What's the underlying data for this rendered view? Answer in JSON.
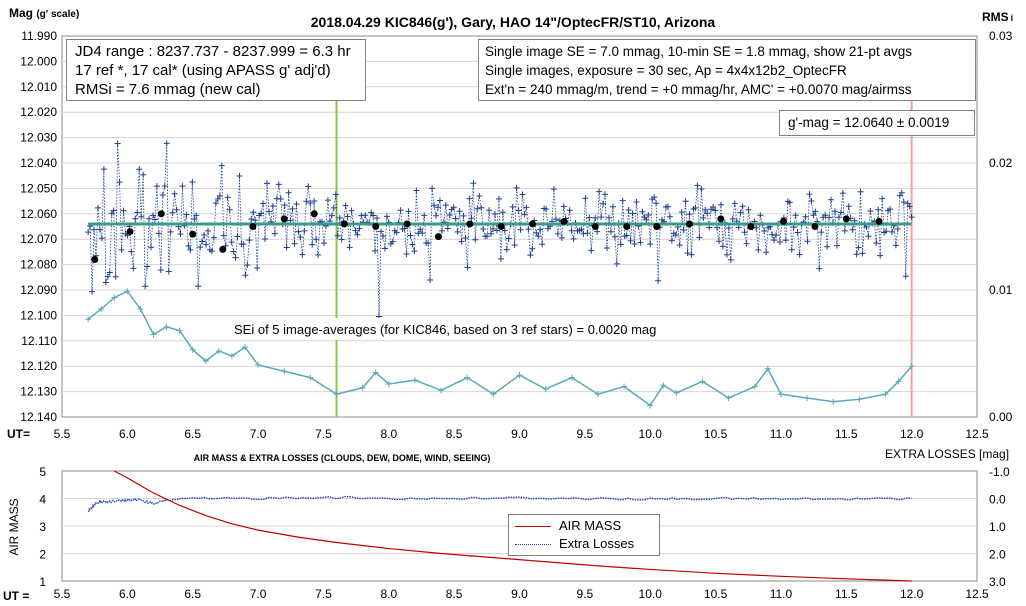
{
  "chart_data": [
    {
      "type": "scatter",
      "title": "2018.04.29  KIC846(g'),  Gary, HAO 14\"/OptecFR/ST10,  Arizona",
      "ylabel": "Mag",
      "ylabel_unit": "(g' scale)",
      "xlabel": "UT=",
      "y2label": "RMS",
      "y2label_suffix": "i",
      "xlim": [
        5.5,
        12.5
      ],
      "ylim": [
        11.99,
        12.14
      ],
      "y_inverted": true,
      "y2lim": [
        0.0,
        0.03
      ],
      "x_ticks": [
        "5.5",
        "6.0",
        "6.5",
        "7.0",
        "7.5",
        "8.0",
        "8.5",
        "9.0",
        "9.5",
        "10.0",
        "10.5",
        "11.0",
        "11.5",
        "12.0",
        "12.5"
      ],
      "y_ticks": [
        "11.990",
        "12.000",
        "12.010",
        "12.020",
        "12.030",
        "12.040",
        "12.050",
        "12.060",
        "12.070",
        "12.080",
        "12.090",
        "12.100",
        "12.110",
        "12.120",
        "12.130",
        "12.140"
      ],
      "y2_ticks": [
        "0.03",
        "0.02",
        "0.01",
        "0.00"
      ],
      "grid": true,
      "mean_mag": 12.064,
      "vertical_lines": [
        {
          "x": 7.6,
          "color": "#8cc63f"
        },
        {
          "x": 12.0,
          "color": "#f0a0a0"
        }
      ],
      "series": [
        {
          "color": "#1f3f8f",
          "marker": "+",
          "x_start": 5.7,
          "x_end": 12.0
        },
        {
          "color": "#000000",
          "marker": "dot",
          "x": [
            5.75,
            6.02,
            6.26,
            6.5,
            6.73,
            6.96,
            7.2,
            7.43,
            7.66,
            7.9,
            8.14,
            8.38,
            8.62,
            8.86,
            9.1,
            9.34,
            9.58,
            9.82,
            10.05,
            10.3,
            10.54,
            10.77,
            11.02,
            11.26,
            11.5,
            11.75
          ],
          "y": [
            12.078,
            12.067,
            12.06,
            12.068,
            12.074,
            12.065,
            12.062,
            12.06,
            12.064,
            12.065,
            12.064,
            12.069,
            12.064,
            12.065,
            12.064,
            12.063,
            12.065,
            12.065,
            12.065,
            12.064,
            12.062,
            12.065,
            12.063,
            12.065,
            12.062,
            12.063
          ]
        },
        {
          "color": "#5aaab8",
          "marker": "+",
          "axis": "y2",
          "x": [
            5.7,
            5.8,
            5.9,
            6.0,
            6.1,
            6.2,
            6.3,
            6.4,
            6.5,
            6.6,
            6.7,
            6.8,
            6.9,
            7.0,
            7.2,
            7.4,
            7.6,
            7.8,
            7.9,
            8.0,
            8.2,
            8.4,
            8.6,
            8.8,
            9.0,
            9.2,
            9.4,
            9.6,
            9.8,
            10.0,
            10.1,
            10.2,
            10.4,
            10.6,
            10.8,
            10.9,
            11.0,
            11.2,
            11.4,
            11.6,
            11.8,
            11.9,
            12.0
          ],
          "y": [
            0.0077,
            0.0085,
            0.0094,
            0.0099,
            0.0085,
            0.0065,
            0.0071,
            0.0068,
            0.0053,
            0.0044,
            0.0052,
            0.0048,
            0.0055,
            0.0041,
            0.0036,
            0.0031,
            0.0018,
            0.0023,
            0.0035,
            0.0026,
            0.0029,
            0.0021,
            0.0031,
            0.0018,
            0.0033,
            0.0022,
            0.0031,
            0.0018,
            0.0024,
            0.0009,
            0.0025,
            0.0019,
            0.0028,
            0.0015,
            0.0024,
            0.0038,
            0.0018,
            0.0015,
            0.0012,
            0.0014,
            0.0018,
            0.0028,
            0.004
          ]
        }
      ]
    },
    {
      "type": "line",
      "title": "AIR MASS & EXTRA LOSSES (CLOUDS, DEW, DOME, WIND, SEEING)",
      "ylabel": "AIR MASS",
      "xlabel": "UT =",
      "y2label": "EXTRA LOSSES [mag]",
      "xlim": [
        5.5,
        12.5
      ],
      "ylim": [
        1,
        5
      ],
      "y2lim": [
        -1.0,
        3.0
      ],
      "y2_inverted": true,
      "x_ticks": [
        "5.5",
        "6.0",
        "6.5",
        "7.0",
        "7.5",
        "8.0",
        "8.5",
        "9.0",
        "9.5",
        "10.0",
        "10.5",
        "11.0",
        "11.5",
        "12.0",
        "12.5"
      ],
      "y_ticks": [
        "5",
        "4",
        "3",
        "2",
        "1"
      ],
      "y2_ticks": [
        "-1.0",
        "0.0",
        "1.0",
        "2.0",
        "3.0"
      ],
      "grid": true,
      "legend_position": "center",
      "series": [
        {
          "name": "AIR MASS",
          "color": "#c00000",
          "x": [
            5.9,
            6.0,
            6.2,
            6.4,
            6.6,
            6.8,
            7.0,
            7.3,
            7.6,
            8.0,
            8.4,
            8.8,
            9.2,
            9.6,
            10.0,
            10.5,
            11.0,
            11.5,
            12.0
          ],
          "y": [
            5.0,
            4.75,
            4.2,
            3.75,
            3.38,
            3.08,
            2.85,
            2.6,
            2.4,
            2.18,
            2.0,
            1.85,
            1.7,
            1.55,
            1.42,
            1.28,
            1.17,
            1.08,
            1.0
          ]
        },
        {
          "name": "Extra Losses",
          "color": "#1f3fbf",
          "axis": "y2",
          "x": [
            5.7,
            5.75,
            5.8,
            5.9,
            6.0,
            6.1,
            6.2,
            6.3,
            6.5,
            7.0,
            7.5,
            8.0,
            8.5,
            9.0,
            9.5,
            10.0,
            10.5,
            11.0,
            11.5,
            12.0
          ],
          "y": [
            0.45,
            0.2,
            0.12,
            0.1,
            0.05,
            0.05,
            0.2,
            0.05,
            0.0,
            0.0,
            -0.05,
            0.0,
            0.0,
            -0.02,
            0.0,
            0.02,
            0.0,
            0.02,
            0.02,
            0.0
          ]
        }
      ]
    }
  ],
  "annotations": {
    "jd_range": "JD4 range : 8237.737 - 8237.999 = 6.3  hr",
    "ref_cal": "17 ref *, 17 cal* (using APASS g' adj'd)",
    "rmsi": "RMSi = 7.6 mmag (new cal)",
    "se_line1": "Single image SE = 7.0 mmag, 10-min SE = 1.8 mmag, show  21-pt avgs",
    "se_line2": "Single images, exposure = 30 sec, Ap = 4x4x12b2_OptecFR",
    "se_line3": "Ext'n = 240 mmag/m, trend =  +0 mmag/hr, AMC' = +0.0070 mag/airmss",
    "gmag": "g'-mag = 12.0640 ± 0.0019",
    "sei": "SEi of 5 image-averages (for KIC846, based on 3 ref stars) = 0.0020  mag"
  },
  "legend": {
    "air_mass": "AIR MASS",
    "extra_losses": "Extra Losses"
  }
}
